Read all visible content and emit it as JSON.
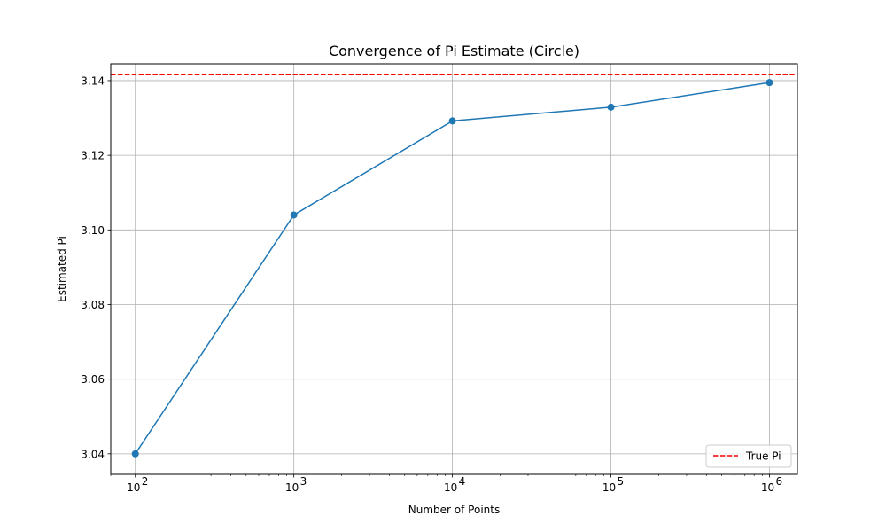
{
  "chart_data": {
    "type": "line",
    "title": "Convergence of Pi Estimate (Circle)",
    "xlabel": "Number of Points",
    "ylabel": "Estimated Pi",
    "x_scale": "log",
    "x": [
      100,
      1000,
      10000,
      100000,
      1000000
    ],
    "xlim": [
      70,
      1500000
    ],
    "ylim": [
      3.0345,
      3.1445
    ],
    "x_ticks": [
      {
        "value": 100,
        "base": "10",
        "exp": "2"
      },
      {
        "value": 1000,
        "base": "10",
        "exp": "3"
      },
      {
        "value": 10000,
        "base": "10",
        "exp": "4"
      },
      {
        "value": 100000,
        "base": "10",
        "exp": "5"
      },
      {
        "value": 1000000,
        "base": "10",
        "exp": "6"
      }
    ],
    "y_ticks": [
      {
        "value": 3.04,
        "label": "3.04"
      },
      {
        "value": 3.06,
        "label": "3.06"
      },
      {
        "value": 3.08,
        "label": "3.08"
      },
      {
        "value": 3.1,
        "label": "3.10"
      },
      {
        "value": 3.12,
        "label": "3.12"
      },
      {
        "value": 3.14,
        "label": "3.14"
      }
    ],
    "grid": true,
    "series": [
      {
        "values": [
          3.04,
          3.104,
          3.1292,
          3.1329,
          3.13948
        ],
        "color": "#1f77b4",
        "marker": "circle"
      }
    ],
    "reference_line": {
      "name": "True Pi",
      "value": 3.14159,
      "color": "#ff0000",
      "style": "dashed"
    },
    "legend": {
      "position": "lower-right",
      "entries": [
        "True Pi"
      ]
    }
  }
}
